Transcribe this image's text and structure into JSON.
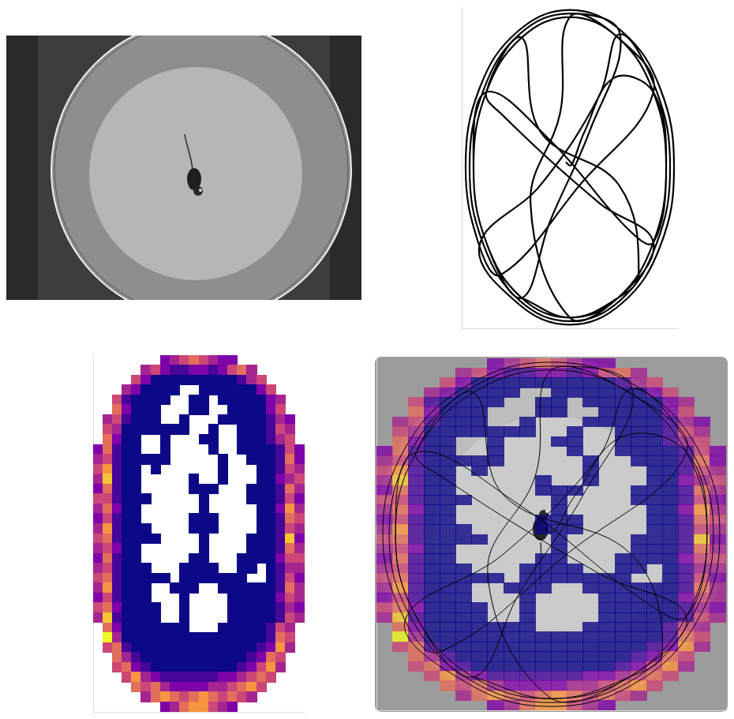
{
  "chart_data": [
    {
      "type": "line",
      "color": "#000000",
      "grid": false,
      "tick_labels": false,
      "xlim": [
        0,
        22
      ],
      "ylim": [
        0,
        36
      ],
      "x": [
        10.6,
        11.0,
        11.3,
        12.5,
        15.5,
        19.5,
        20.8,
        19.5,
        15.9,
        11,
        6.1,
        2.5,
        1.2,
        2.5,
        6.1,
        11,
        15.9,
        19.5,
        12,
        4,
        1.8,
        0.4,
        1.8,
        5.7,
        11,
        16.3,
        20.2,
        21.6,
        20.2,
        16.3,
        11,
        5.7,
        1.8,
        8,
        14,
        16.1,
        19.8,
        21.2,
        19.8,
        16.1,
        11,
        5.9,
        2.2,
        0.8,
        2.2,
        5.9,
        11,
        16.1,
        13,
        9,
        6.1,
        2.5,
        1.2,
        2.5,
        9,
        17,
        19.5,
        20.8,
        19.5,
        15.9,
        11,
        10,
        7,
        11,
        15.9,
        19.5,
        14,
        4,
        2.5,
        6.1,
        8,
        16,
        18,
        15.9,
        11,
        6.1
      ],
      "values": [
        17.4,
        17.8,
        17.5,
        14.0,
        8.0,
        9.6,
        18,
        26.4,
        32.6,
        34.8,
        32.6,
        26.4,
        18,
        9.6,
        3.5,
        1.2,
        3.5,
        9.6,
        20,
        30,
        26.8,
        18,
        9.2,
        2.8,
        0.4,
        2.8,
        9.2,
        18,
        26.8,
        33.2,
        35.6,
        33.2,
        26.8,
        20,
        10,
        3.1,
        9.4,
        18,
        26.6,
        32.9,
        35.2,
        32.9,
        26.6,
        18,
        9.4,
        3.1,
        0.8,
        3.1,
        14,
        24,
        32.6,
        26.4,
        18,
        9.6,
        15,
        25,
        26.4,
        18,
        9.6,
        3.5,
        1.2,
        12,
        22,
        34.8,
        32.6,
        26.4,
        22,
        12,
        9.6,
        3.5,
        14,
        20,
        30,
        32.6,
        34.8,
        32.6
      ]
    },
    {
      "type": "heatmap",
      "grid": false,
      "tick_labels": false,
      "xlim": [
        0,
        22
      ],
      "ylim": [
        0,
        36
      ],
      "cells": [
        [
          null,
          null,
          null,
          null,
          null,
          null,
          null,
          3,
          4,
          5,
          6,
          5,
          4,
          3,
          3,
          null,
          null,
          null,
          null,
          null,
          null,
          null
        ],
        [
          null,
          null,
          null,
          null,
          null,
          4,
          5,
          3,
          2,
          2,
          3,
          3,
          2,
          3,
          5,
          6,
          4,
          null,
          null,
          null,
          null,
          null
        ],
        [
          null,
          null,
          null,
          null,
          5,
          3,
          1,
          1,
          1,
          1,
          1,
          1,
          1,
          1,
          1,
          2,
          4,
          5,
          null,
          null,
          null,
          null
        ],
        [
          null,
          null,
          null,
          4,
          3,
          1,
          1,
          1,
          1,
          null,
          null,
          1,
          1,
          1,
          1,
          1,
          1,
          3,
          5,
          null,
          null,
          null
        ],
        [
          null,
          null,
          5,
          2,
          1,
          1,
          1,
          1,
          null,
          null,
          1,
          1,
          null,
          1,
          1,
          1,
          1,
          1,
          3,
          4,
          null,
          null
        ],
        [
          null,
          null,
          6,
          3,
          1,
          1,
          1,
          null,
          null,
          null,
          1,
          1,
          null,
          null,
          1,
          1,
          1,
          1,
          3,
          5,
          null,
          null
        ],
        [
          null,
          4,
          5,
          2,
          1,
          1,
          1,
          null,
          null,
          1,
          null,
          null,
          null,
          1,
          1,
          1,
          1,
          1,
          2,
          4,
          3,
          null
        ],
        [
          null,
          5,
          4,
          1,
          1,
          1,
          1,
          1,
          1,
          1,
          null,
          null,
          1,
          null,
          null,
          1,
          1,
          1,
          2,
          5,
          4,
          null
        ],
        [
          null,
          6,
          3,
          1,
          1,
          null,
          null,
          1,
          null,
          null,
          null,
          1,
          1,
          null,
          null,
          1,
          1,
          1,
          2,
          4,
          5,
          null
        ],
        [
          3,
          6,
          2,
          1,
          1,
          null,
          null,
          1,
          null,
          null,
          null,
          null,
          1,
          null,
          null,
          1,
          1,
          1,
          1,
          2,
          5,
          3
        ],
        [
          4,
          5,
          2,
          1,
          1,
          1,
          1,
          1,
          null,
          null,
          null,
          null,
          null,
          1,
          null,
          null,
          1,
          1,
          1,
          2,
          6,
          3
        ],
        [
          5,
          7,
          2,
          1,
          1,
          null,
          1,
          null,
          null,
          null,
          null,
          null,
          null,
          1,
          null,
          null,
          null,
          1,
          1,
          2,
          5,
          4
        ],
        [
          4,
          8,
          2,
          1,
          1,
          null,
          null,
          null,
          null,
          null,
          1,
          null,
          null,
          1,
          null,
          null,
          null,
          1,
          1,
          3,
          4,
          5
        ],
        [
          3,
          6,
          2,
          1,
          1,
          null,
          null,
          null,
          null,
          null,
          1,
          1,
          1,
          null,
          null,
          null,
          1,
          1,
          1,
          2,
          6,
          4
        ],
        [
          5,
          5,
          2,
          1,
          1,
          1,
          null,
          null,
          null,
          null,
          null,
          1,
          null,
          null,
          null,
          null,
          1,
          1,
          1,
          2,
          5,
          3
        ],
        [
          4,
          6,
          3,
          1,
          1,
          null,
          null,
          null,
          null,
          null,
          null,
          1,
          null,
          null,
          null,
          null,
          null,
          1,
          1,
          3,
          7,
          4
        ],
        [
          3,
          5,
          2,
          1,
          1,
          null,
          null,
          null,
          null,
          null,
          1,
          1,
          1,
          null,
          null,
          null,
          null,
          1,
          1,
          2,
          6,
          5
        ],
        [
          4,
          7,
          2,
          1,
          1,
          1,
          null,
          null,
          null,
          null,
          1,
          1,
          1,
          null,
          null,
          null,
          null,
          1,
          1,
          2,
          5,
          4
        ],
        [
          5,
          6,
          2,
          1,
          1,
          1,
          1,
          null,
          null,
          null,
          null,
          1,
          null,
          null,
          null,
          null,
          1,
          1,
          1,
          2,
          8,
          3
        ],
        [
          4,
          5,
          3,
          1,
          1,
          null,
          null,
          null,
          null,
          null,
          null,
          1,
          null,
          null,
          null,
          null,
          1,
          1,
          1,
          2,
          6,
          4
        ],
        [
          3,
          6,
          2,
          1,
          1,
          null,
          null,
          null,
          null,
          null,
          1,
          1,
          null,
          null,
          null,
          1,
          1,
          1,
          1,
          3,
          5,
          5
        ],
        [
          4,
          5,
          2,
          1,
          1,
          1,
          null,
          null,
          null,
          1,
          1,
          1,
          1,
          null,
          null,
          1,
          1,
          null,
          1,
          2,
          4,
          4
        ],
        [
          5,
          6,
          2,
          1,
          1,
          1,
          1,
          1,
          null,
          1,
          1,
          1,
          1,
          1,
          1,
          1,
          null,
          null,
          1,
          2,
          5,
          3
        ],
        [
          4,
          7,
          2,
          1,
          1,
          1,
          null,
          null,
          1,
          1,
          1,
          null,
          null,
          1,
          1,
          1,
          1,
          1,
          1,
          2,
          6,
          4
        ],
        [
          3,
          5,
          2,
          1,
          1,
          1,
          null,
          null,
          null,
          1,
          null,
          null,
          null,
          null,
          1,
          1,
          1,
          1,
          1,
          3,
          5,
          4
        ],
        [
          5,
          6,
          3,
          1,
          1,
          1,
          1,
          null,
          null,
          1,
          null,
          null,
          null,
          null,
          1,
          1,
          1,
          1,
          1,
          2,
          4,
          3
        ],
        [
          4,
          8,
          2,
          1,
          1,
          1,
          1,
          null,
          null,
          1,
          null,
          null,
          null,
          null,
          1,
          1,
          1,
          1,
          1,
          2,
          5,
          4
        ],
        [
          null,
          6,
          3,
          1,
          1,
          1,
          1,
          1,
          1,
          1,
          null,
          null,
          null,
          1,
          1,
          1,
          1,
          1,
          2,
          5,
          4,
          null
        ],
        [
          null,
          9,
          4,
          1,
          1,
          1,
          1,
          1,
          1,
          1,
          1,
          1,
          1,
          1,
          1,
          1,
          1,
          1,
          2,
          6,
          5,
          null
        ],
        [
          null,
          5,
          6,
          2,
          1,
          1,
          1,
          1,
          1,
          1,
          1,
          1,
          1,
          1,
          1,
          1,
          1,
          2,
          3,
          7,
          4,
          null
        ],
        [
          null,
          null,
          6,
          4,
          2,
          1,
          1,
          1,
          1,
          1,
          1,
          1,
          1,
          1,
          1,
          1,
          2,
          3,
          6,
          5,
          null,
          null
        ],
        [
          null,
          null,
          5,
          6,
          3,
          2,
          1,
          1,
          1,
          1,
          1,
          1,
          1,
          1,
          1,
          2,
          3,
          5,
          7,
          4,
          null,
          null
        ],
        [
          null,
          null,
          null,
          5,
          7,
          4,
          3,
          2,
          2,
          2,
          2,
          2,
          2,
          3,
          3,
          4,
          5,
          6,
          5,
          null,
          null,
          null
        ],
        [
          null,
          null,
          null,
          null,
          6,
          5,
          6,
          4,
          3,
          3,
          3,
          3,
          4,
          4,
          5,
          6,
          7,
          5,
          null,
          null,
          null,
          null
        ],
        [
          null,
          null,
          null,
          null,
          null,
          4,
          6,
          7,
          6,
          5,
          6,
          7,
          6,
          5,
          6,
          5,
          4,
          null,
          null,
          null,
          null,
          null
        ],
        [
          null,
          null,
          null,
          null,
          null,
          null,
          null,
          3,
          4,
          6,
          7,
          7,
          5,
          4,
          3,
          null,
          null,
          null,
          null,
          null,
          null,
          null
        ]
      ]
    }
  ]
}
